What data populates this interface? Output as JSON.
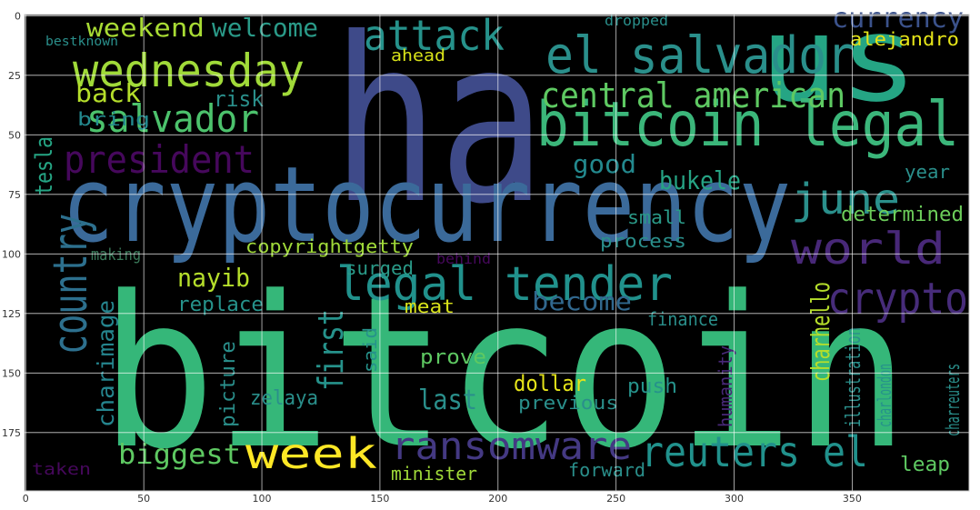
{
  "chart_data": {
    "type": "wordcloud",
    "words": [
      {
        "text": "bitcoin",
        "color": "#35b779"
      },
      {
        "text": "ha",
        "color": "#3e4a89"
      },
      {
        "text": "us",
        "color": "#25a584"
      },
      {
        "text": "cryptocurrency",
        "color": "#3b6a9a"
      },
      {
        "text": "bitcoin legal",
        "color": "#3bb67a"
      },
      {
        "text": "el salvador",
        "color": "#2a8f8b"
      },
      {
        "text": "attack",
        "color": "#26928b"
      },
      {
        "text": "central american",
        "color": "#5ec962"
      },
      {
        "text": "wednesday",
        "color": "#a0da39"
      },
      {
        "text": "weekend",
        "color": "#a8db34"
      },
      {
        "text": "welcome",
        "color": "#2a9a88"
      },
      {
        "text": "salvador",
        "color": "#4cc26c"
      },
      {
        "text": "president",
        "color": "#46085c"
      },
      {
        "text": "back",
        "color": "#b5de2b"
      },
      {
        "text": "risk",
        "color": "#2a8f8b"
      },
      {
        "text": "bring",
        "color": "#23898e"
      },
      {
        "text": "tesla",
        "color": "#25a584"
      },
      {
        "text": "country",
        "color": "#2d708e"
      },
      {
        "text": "legal tender",
        "color": "#21918c"
      },
      {
        "text": "world",
        "color": "#482878"
      },
      {
        "text": "crypto",
        "color": "#472c7a"
      },
      {
        "text": "june",
        "color": "#2a8f8b"
      },
      {
        "text": "good",
        "color": "#23898e"
      },
      {
        "text": "bukele",
        "color": "#26a384"
      },
      {
        "text": "small",
        "color": "#2a9a88"
      },
      {
        "text": "determined",
        "color": "#6ccd5a"
      },
      {
        "text": "process",
        "color": "#2a8f8b"
      },
      {
        "text": "become",
        "color": "#31688e"
      },
      {
        "text": "finance",
        "color": "#2a8f8b"
      },
      {
        "text": "nayib",
        "color": "#b5de2b"
      },
      {
        "text": "surged",
        "color": "#2a9a88"
      },
      {
        "text": "replace",
        "color": "#26928b"
      },
      {
        "text": "meat",
        "color": "#d8e219"
      },
      {
        "text": "copyrightgetty",
        "color": "#a0da39"
      },
      {
        "text": "making",
        "color": "#3a7a5a"
      },
      {
        "text": "first",
        "color": "#26928b"
      },
      {
        "text": "charimage",
        "color": "#25858e"
      },
      {
        "text": "picture",
        "color": "#2a8f8b"
      },
      {
        "text": "zelaya",
        "color": "#2a8f8b"
      },
      {
        "text": "said",
        "color": "#26928b"
      },
      {
        "text": "prove",
        "color": "#5ec962"
      },
      {
        "text": "last",
        "color": "#2a8f8b"
      },
      {
        "text": "dollar",
        "color": "#e5e419"
      },
      {
        "text": "previous",
        "color": "#2a8f8b"
      },
      {
        "text": "push",
        "color": "#26928b"
      },
      {
        "text": "ransomware",
        "color": "#443983"
      },
      {
        "text": "reuters el",
        "color": "#21918c"
      },
      {
        "text": "week",
        "color": "#fde725"
      },
      {
        "text": "biggest",
        "color": "#5ec962"
      },
      {
        "text": "minister",
        "color": "#a0da39"
      },
      {
        "text": "forward",
        "color": "#2a8f8b"
      },
      {
        "text": "leap",
        "color": "#5ec962"
      },
      {
        "text": "charhello",
        "color": "#b5de2b"
      },
      {
        "text": "currency",
        "color": "#3b528b"
      },
      {
        "text": "alejandro",
        "color": "#e5e419"
      },
      {
        "text": "dropped",
        "color": "#2a8f8b"
      },
      {
        "text": "ahead",
        "color": "#d8e219"
      },
      {
        "text": "bestknown",
        "color": "#2a8f8b"
      },
      {
        "text": "year",
        "color": "#2a8f8b"
      },
      {
        "text": "humanity",
        "color": "#482878"
      },
      {
        "text": "illustration",
        "color": "#2a8f8b"
      },
      {
        "text": "charlondon",
        "color": "#26928b"
      },
      {
        "text": "charreuters",
        "color": "#2a8f8b"
      },
      {
        "text": "taken",
        "color": "#46085c"
      },
      {
        "text": "behind",
        "color": "#46085c"
      }
    ],
    "xlim": [
      -0.5,
      399.5
    ],
    "ylim": [
      199.5,
      -0.5
    ],
    "xticks": [
      0,
      50,
      100,
      150,
      200,
      250,
      300,
      350
    ],
    "yticks": [
      0,
      25,
      50,
      75,
      100,
      125,
      150,
      175
    ],
    "grid": true
  }
}
